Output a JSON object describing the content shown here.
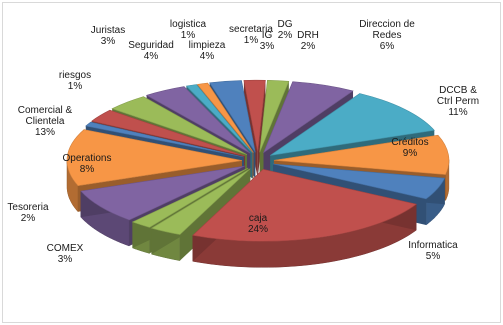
{
  "chart_data": {
    "type": "pie",
    "style": "3d-exploded",
    "legend": "none",
    "slices": [
      {
        "label": "caja",
        "value": 24,
        "display": "24%",
        "color": "#c0504d"
      },
      {
        "label": "COMEX",
        "value": 3,
        "display": "3%",
        "color": "#9bbb59"
      },
      {
        "label": "Tesoreria",
        "value": 2,
        "display": "2%",
        "color": "#9bbb59"
      },
      {
        "label": "Operations",
        "value": 8,
        "display": "8%",
        "color": "#8064a2"
      },
      {
        "label": "Comercial & Clientela",
        "value": 13,
        "display": "13%",
        "color": "#f79646"
      },
      {
        "label": "riesgos",
        "value": 1,
        "display": "1%",
        "color": "#4f81bd"
      },
      {
        "label": "Juristas",
        "value": 3,
        "display": "3%",
        "color": "#c0504d"
      },
      {
        "label": "Seguridad",
        "value": 4,
        "display": "4%",
        "color": "#9bbb59"
      },
      {
        "label": "limpieza",
        "value": 4,
        "display": "4%",
        "color": "#8064a2"
      },
      {
        "label": "logistica",
        "value": 1,
        "display": "1%",
        "color": "#4bacc6"
      },
      {
        "label": "secretaria",
        "value": 1,
        "display": "1%",
        "color": "#f79646"
      },
      {
        "label": "IG",
        "value": 3,
        "display": "3%",
        "color": "#4f81bd"
      },
      {
        "label": "DG",
        "value": 2,
        "display": "2%",
        "color": "#c0504d"
      },
      {
        "label": "DRH",
        "value": 2,
        "display": "2%",
        "color": "#9bbb59"
      },
      {
        "label": "Direccion de Redes",
        "value": 6,
        "display": "6%",
        "color": "#8064a2"
      },
      {
        "label": "DCCB & Ctrl Perm",
        "value": 11,
        "display": "11%",
        "color": "#4bacc6"
      },
      {
        "label": "Créditos",
        "value": 9,
        "display": "9%",
        "color": "#f79646"
      },
      {
        "label": "Informatica",
        "value": 5,
        "display": "5%",
        "color": "#4f81bd"
      }
    ]
  }
}
